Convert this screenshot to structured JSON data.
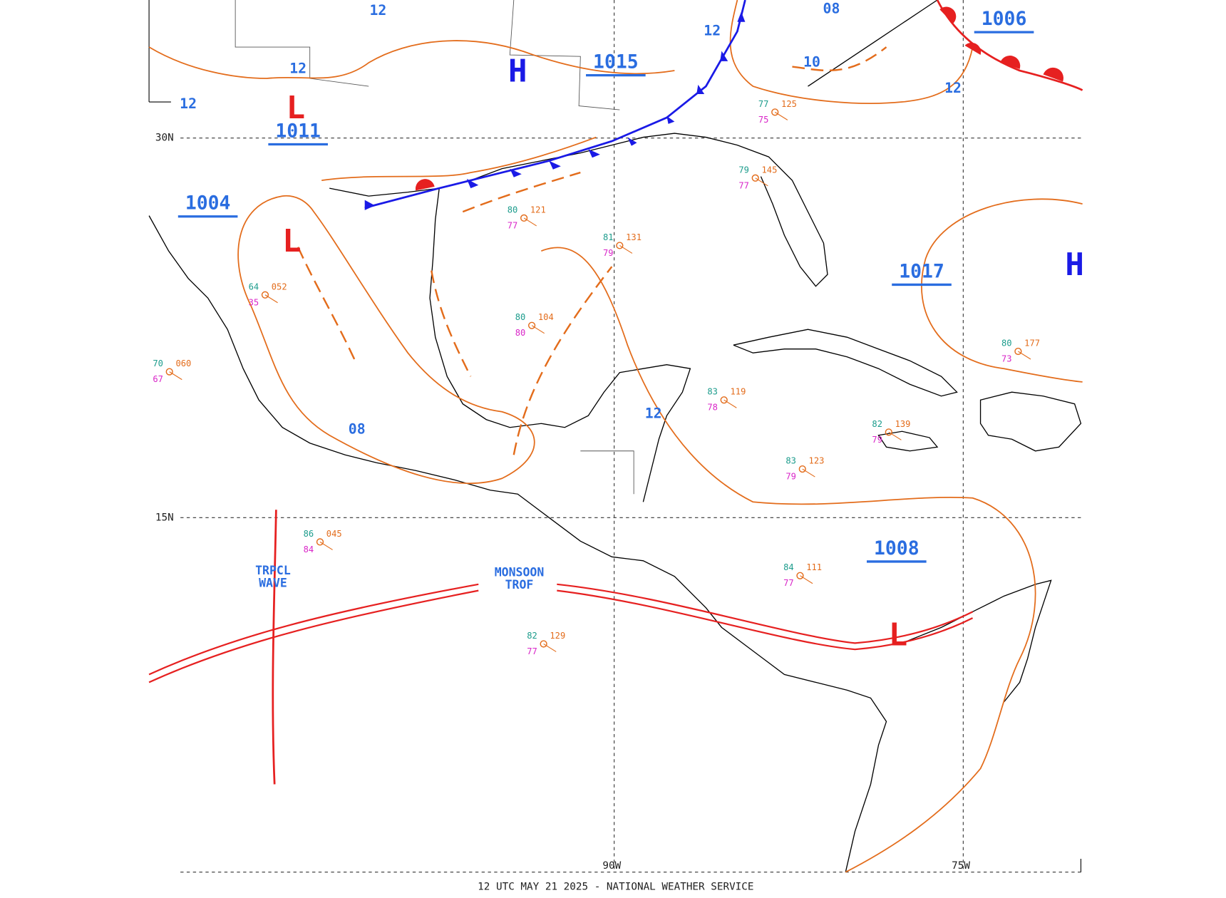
{
  "footer": "12 UTC MAY 21 2025 - NATIONAL WEATHER SERVICE",
  "grid_labels": [
    "30N",
    "15N",
    "90W",
    "75W"
  ],
  "pressure_labels": [
    "1011",
    "1004",
    "1015",
    "1006",
    "1017",
    "1008"
  ],
  "centers": [
    "H",
    "L",
    "L",
    "L",
    "H"
  ],
  "isobar_labels": [
    "12",
    "12",
    "12",
    "12",
    "12",
    "12",
    "08",
    "08",
    "10"
  ],
  "features": [
    "TRPCL\nWAVE",
    "MONSOON\nTROF"
  ],
  "stations": [
    {
      "temp": "77",
      "dewpoint": "75",
      "pressure": "125"
    },
    {
      "temp": "80",
      "dewpoint": "77",
      "pressure": "121"
    },
    {
      "temp": "81",
      "dewpoint": "79",
      "pressure": "131"
    },
    {
      "temp": "80",
      "dewpoint": "80",
      "pressure": "104"
    },
    {
      "temp": "83",
      "dewpoint": "78",
      "pressure": "119"
    },
    {
      "temp": "82",
      "dewpoint": "79",
      "pressure": "139"
    },
    {
      "temp": "83",
      "dewpoint": "79",
      "pressure": "123"
    },
    {
      "temp": "84",
      "dewpoint": "77",
      "pressure": "111"
    },
    {
      "temp": "86",
      "dewpoint": "84",
      "pressure": "045"
    },
    {
      "temp": "82",
      "dewpoint": "77",
      "pressure": "129"
    },
    {
      "temp": "79",
      "dewpoint": "77",
      "pressure": "145"
    },
    {
      "temp": "80",
      "dewpoint": "73",
      "pressure": "177"
    },
    {
      "temp": "64",
      "dewpoint": "35",
      "pressure": "052"
    },
    {
      "temp": "70",
      "dewpoint": "67",
      "pressure": "060"
    }
  ]
}
